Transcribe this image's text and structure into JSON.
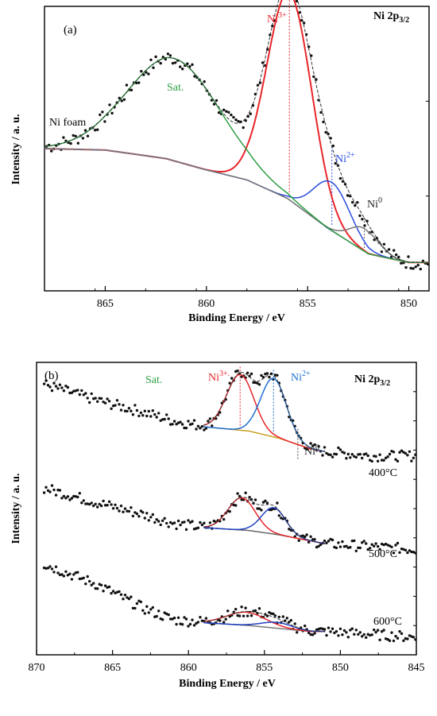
{
  "chart_data": [
    {
      "type": "line",
      "panel_label": "(a)",
      "title": "Ni 2p3/2",
      "title_main": "Ni 2p",
      "title_sub": "3/2",
      "xlabel": "Binding Energy / eV",
      "ylabel": "Intensity / a. u.",
      "xlim": [
        868,
        849
      ],
      "ylim": [
        0,
        1
      ],
      "x_ticks": [
        865,
        860,
        855,
        850
      ],
      "x_tick_labels": [
        "865",
        "860",
        "855",
        "850"
      ],
      "x_axis_reversed": true,
      "sample_label": "Ni foam",
      "components": [
        {
          "name": "Ni3+",
          "label_main": "Ni",
          "label_sup": "3+",
          "color": "#e8262a",
          "type": "gauss",
          "center": 855.9,
          "sigma": 1.1,
          "amp": 0.73
        },
        {
          "name": "Ni2+",
          "label_main": "Ni",
          "label_sup": "2+",
          "color": "#2b4ce0",
          "type": "gauss",
          "center": 853.8,
          "sigma": 0.9,
          "amp": 0.17
        },
        {
          "name": "Ni0",
          "label_main": "Ni",
          "label_sup": "0",
          "color": "#777777",
          "type": "gauss",
          "center": 852.2,
          "sigma": 0.7,
          "amp": 0.08
        },
        {
          "name": "Sat.",
          "label_main": "Sat.",
          "label_sup": "",
          "color": "#2ea043",
          "type": "gauss",
          "center": 861.6,
          "sigma": 2.3,
          "amp": 0.36
        }
      ],
      "background": [
        {
          "x": 868,
          "y": 0.5
        },
        {
          "x": 865,
          "y": 0.495
        },
        {
          "x": 862,
          "y": 0.465
        },
        {
          "x": 860,
          "y": 0.425
        },
        {
          "x": 858,
          "y": 0.39
        },
        {
          "x": 856,
          "y": 0.325
        },
        {
          "x": 854,
          "y": 0.22
        },
        {
          "x": 852,
          "y": 0.13
        },
        {
          "x": 850,
          "y": 0.1
        },
        {
          "x": 849,
          "y": 0.1
        }
      ],
      "peak_markers": [
        855.9,
        853.8,
        852.2
      ],
      "data_scatter_amplitude": 0.025
    },
    {
      "type": "line",
      "panel_label": "(b)",
      "title": "Ni 2p3/2",
      "title_main": "Ni 2p",
      "title_sub": "3/2",
      "xlabel": "Binding Energy / eV",
      "ylabel": "Intensity / a. u.",
      "xlim": [
        870,
        845
      ],
      "ylim": [
        0,
        1
      ],
      "x_ticks": [
        870,
        865,
        860,
        855,
        850,
        845
      ],
      "x_tick_labels": [
        "870",
        "865",
        "860",
        "855",
        "850",
        "845"
      ],
      "x_axis_reversed": true,
      "labels": {
        "sat": "Sat.",
        "ni3": {
          "main": "Ni",
          "sup": "3+."
        },
        "ni2": {
          "main": "Ni",
          "sup": "2+"
        },
        "ni0": {
          "main": "Ni",
          "sup": "0"
        }
      },
      "peak_markers": [
        856.6,
        854.4,
        852.8
      ],
      "series": [
        {
          "name": "400°C",
          "offset": 0.68,
          "fit_range": [
            859,
            851
          ],
          "data_range": [
            869.5,
            845
          ],
          "bg_color": "#c8a020",
          "components": [
            {
              "color": "#e8262a",
              "center": 856.6,
              "sigma": 0.9,
              "amp": 0.19
            },
            {
              "color": "#1e6fd0",
              "center": 854.4,
              "sigma": 0.85,
              "amp": 0.2
            }
          ],
          "background": [
            {
              "x": 869.5,
              "y": 0.245
            },
            {
              "x": 866,
              "y": 0.19
            },
            {
              "x": 863,
              "y": 0.15
            },
            {
              "x": 861,
              "y": 0.12
            },
            {
              "x": 859,
              "y": 0.1
            },
            {
              "x": 856,
              "y": 0.085
            },
            {
              "x": 854,
              "y": 0.06
            },
            {
              "x": 852,
              "y": 0.025
            },
            {
              "x": 851,
              "y": 0.015
            },
            {
              "x": 848,
              "y": 0.0
            },
            {
              "x": 845,
              "y": 0.0
            }
          ]
        },
        {
          "name": "500°C",
          "offset": 0.38,
          "fit_range": [
            859,
            851
          ],
          "data_range": [
            869.5,
            845
          ],
          "bg_color": "#666666",
          "components": [
            {
              "color": "#e8262a",
              "center": 856.5,
              "sigma": 0.9,
              "amp": 0.11
            },
            {
              "color": "#2040c0",
              "center": 854.4,
              "sigma": 0.8,
              "amp": 0.09
            }
          ],
          "background": [
            {
              "x": 869.5,
              "y": 0.19
            },
            {
              "x": 866,
              "y": 0.14
            },
            {
              "x": 863,
              "y": 0.1
            },
            {
              "x": 861,
              "y": 0.07
            },
            {
              "x": 859,
              "y": 0.055
            },
            {
              "x": 856,
              "y": 0.045
            },
            {
              "x": 854,
              "y": 0.03
            },
            {
              "x": 852,
              "y": 0.01
            },
            {
              "x": 851,
              "y": 0.0
            },
            {
              "x": 848,
              "y": -0.01
            },
            {
              "x": 845,
              "y": -0.02
            }
          ]
        },
        {
          "name": "600°C",
          "offset": 0.08,
          "fit_range": [
            859,
            851
          ],
          "data_range": [
            869.5,
            845
          ],
          "bg_color": "#777777",
          "components": [
            {
              "color": "#e8262a",
              "center": 856.2,
              "sigma": 1.3,
              "amp": 0.045
            },
            {
              "color": "#2040c0",
              "center": 854.2,
              "sigma": 1.0,
              "amp": 0.02
            }
          ],
          "background": [
            {
              "x": 869.5,
              "y": 0.23
            },
            {
              "x": 866,
              "y": 0.16
            },
            {
              "x": 863,
              "y": 0.08
            },
            {
              "x": 861,
              "y": 0.04
            },
            {
              "x": 859,
              "y": 0.03
            },
            {
              "x": 856,
              "y": 0.02
            },
            {
              "x": 854,
              "y": 0.01
            },
            {
              "x": 852,
              "y": 0.0
            },
            {
              "x": 851,
              "y": 0.0
            },
            {
              "x": 848,
              "y": -0.01
            },
            {
              "x": 845,
              "y": -0.02
            }
          ]
        }
      ],
      "data_scatter_amplitude": 0.018
    }
  ]
}
